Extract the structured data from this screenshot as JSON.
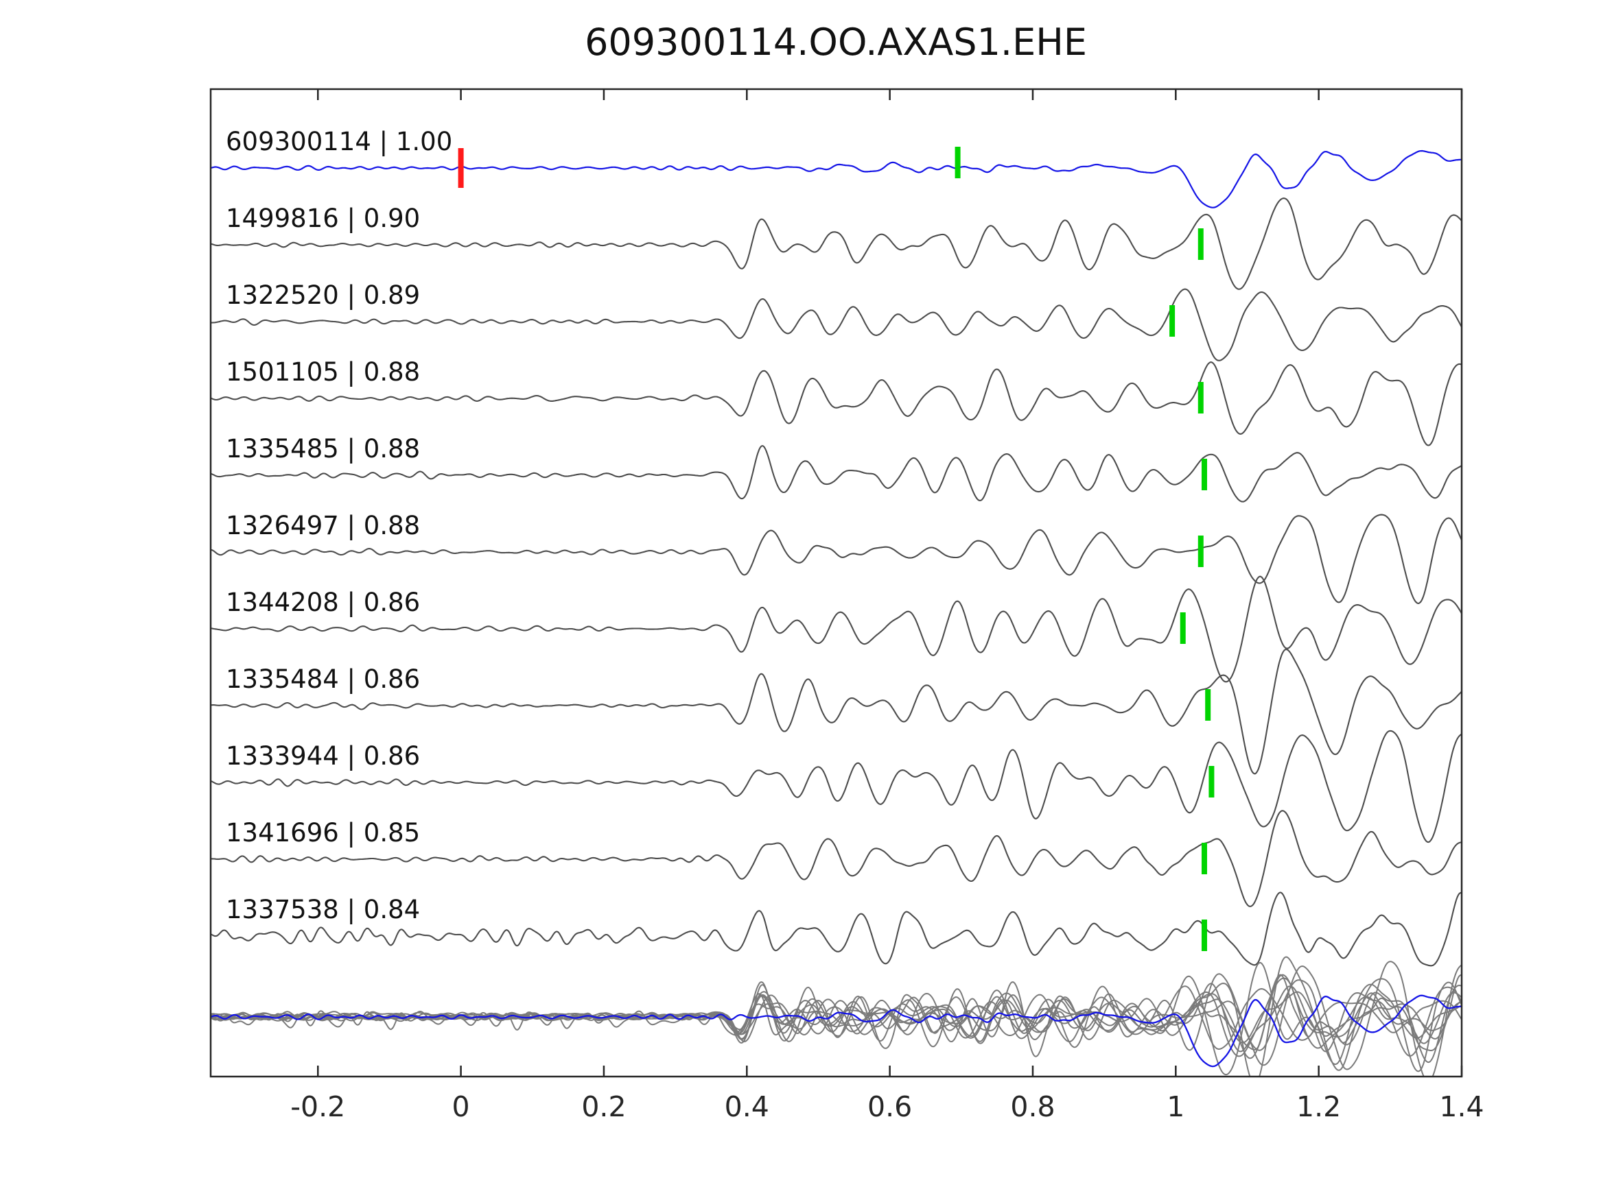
{
  "title": "609300114.OO.AXAS1.EHE",
  "chart_data": {
    "type": "line",
    "title": "609300114.OO.AXAS1.EHE",
    "xlabel": "",
    "ylabel": "",
    "grid": false,
    "legend": false,
    "xlim": [
      -0.35,
      1.4
    ],
    "x_ticks": [
      -0.2,
      0,
      0.2,
      0.4,
      0.6,
      0.8,
      1,
      1.2,
      1.4
    ],
    "x_tick_labels": [
      "-0.2",
      "0",
      "0.2",
      "0.4",
      "0.6",
      "0.8",
      "1",
      "1.2",
      "1.4"
    ],
    "colors": {
      "reference_trace": "#1414e6",
      "match_trace": "#4d4d4d",
      "overlay_traces": "#7a7a7a",
      "pick_marker": "#00d400",
      "reference_zero_marker": "#ff1a1a",
      "axis": "#262626"
    },
    "traces": [
      {
        "label": "609300114 | 1.00",
        "id": "609300114",
        "correlation": 1.0,
        "type": "reference",
        "zero_marker_x": 0.0,
        "pick_x": 0.695
      },
      {
        "label": "1499816 | 0.90",
        "id": "1499816",
        "correlation": 0.9,
        "type": "match",
        "pick_x": 1.035
      },
      {
        "label": "1322520 | 0.89",
        "id": "1322520",
        "correlation": 0.89,
        "type": "match",
        "pick_x": 0.995
      },
      {
        "label": "1501105 | 0.88",
        "id": "1501105",
        "correlation": 0.88,
        "type": "match",
        "pick_x": 1.035
      },
      {
        "label": "1335485 | 0.88",
        "id": "1335485",
        "correlation": 0.88,
        "type": "match",
        "pick_x": 1.04
      },
      {
        "label": "1326497 | 0.88",
        "id": "1326497",
        "correlation": 0.88,
        "type": "match",
        "pick_x": 1.035
      },
      {
        "label": "1344208 | 0.86",
        "id": "1344208",
        "correlation": 0.86,
        "type": "match",
        "pick_x": 1.01
      },
      {
        "label": "1335484 | 0.86",
        "id": "1335484",
        "correlation": 0.86,
        "type": "match",
        "pick_x": 1.045
      },
      {
        "label": "1333944 | 0.86",
        "id": "1333944",
        "correlation": 0.86,
        "type": "match",
        "pick_x": 1.05
      },
      {
        "label": "1341696 | 0.85",
        "id": "1341696",
        "correlation": 0.85,
        "type": "match",
        "pick_x": 1.04
      },
      {
        "label": "1337538 | 0.84",
        "id": "1337538",
        "correlation": 0.84,
        "type": "match",
        "pick_x": 1.04
      }
    ],
    "overlay_row": {
      "description": "all matched traces overlaid in gray with reference trace in blue",
      "includes_reference": true
    }
  }
}
